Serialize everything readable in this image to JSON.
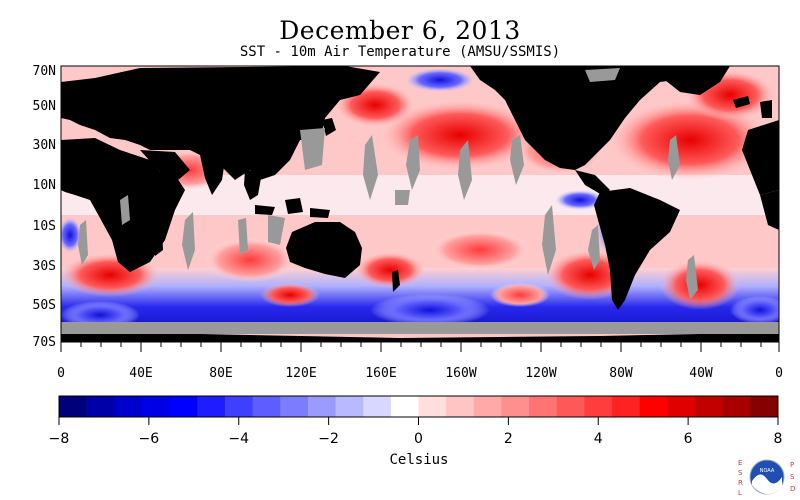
{
  "title": "December 6, 2013",
  "subtitle": "SST - 10m Air Temperature (AMSU/SSMIS)",
  "map": {
    "lat_labels": [
      "70N",
      "50N",
      "30N",
      "10N",
      "10S",
      "30S",
      "50S",
      "70S"
    ],
    "lon_labels": [
      "0",
      "40E",
      "80E",
      "120E",
      "160E",
      "160W",
      "120W",
      "80W",
      "40W",
      "0"
    ],
    "land_color": "#000000",
    "missing_color": "#999999"
  },
  "colorbar": {
    "label": "Celsius",
    "ticks": [
      "−8",
      "−6",
      "−4",
      "−2",
      "0",
      "2",
      "4",
      "6",
      "8"
    ],
    "colors": [
      "#00007a",
      "#0000a8",
      "#0000cc",
      "#0000e6",
      "#0000ff",
      "#1d1dff",
      "#3f3fff",
      "#5e5eff",
      "#7c7cff",
      "#9b9bff",
      "#b9b9ff",
      "#d7d7ff",
      "#ffffff",
      "#ffdede",
      "#ffc4c4",
      "#ffa9a9",
      "#ff8e8e",
      "#ff7373",
      "#ff5858",
      "#ff3d3d",
      "#ff2222",
      "#ff0000",
      "#e10000",
      "#c30000",
      "#a80000",
      "#850000"
    ]
  },
  "logo": {
    "left_letters": "ESRL",
    "right_letters": "PSD",
    "center_text": "NOAA"
  }
}
